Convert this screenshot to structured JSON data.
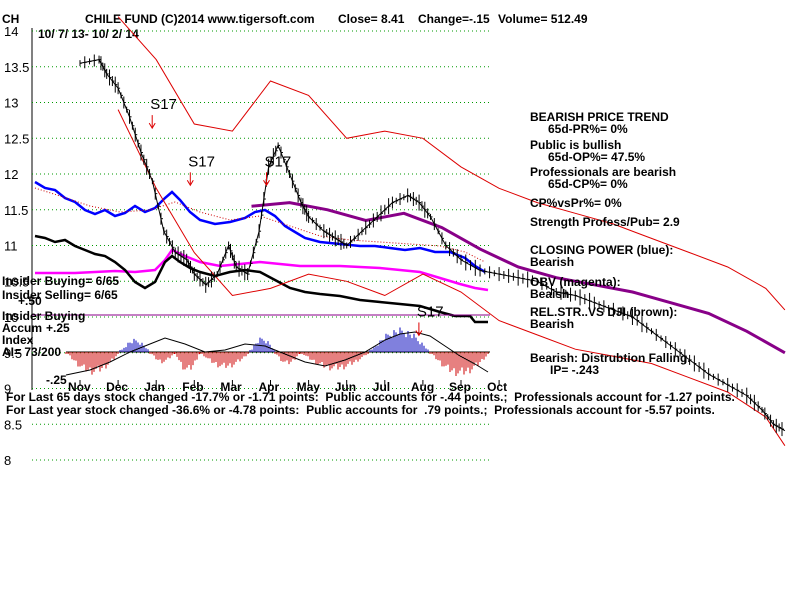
{
  "header": {
    "ticker": "CH",
    "title": "CHILE FUND  (C)2014 www.tigersoft.com",
    "close": "Close=  8.41",
    "change": "Change=-.15",
    "volume": "Volume= 512.49",
    "date_range": "10/ 7/ 13- 10/ 2/ 14"
  },
  "side_panel": {
    "trend_title": "BEARISH PRICE TREND",
    "trend_pr": "65d-PR%= 0%",
    "public": "Public is bullish",
    "public_op": "65d-OP%= 47.5%",
    "pros": "Professionals are bearish",
    "pros_cp": "65d-CP%= 0%",
    "cpvspr": "CP%vsPr%=  0%",
    "strength": "Strength Profess/Pub= 2.9",
    "closing_power": "CLOSING POWER (blue):",
    "closing_power_value": "Bearish",
    "obv": "OBV (magenta):",
    "obv_value": "Beaish",
    "relstr": "REL.STR..VS DJI (brown):",
    "relstr_value": "Bearish",
    "distribution": "Bearish: Distrubtion Falling.",
    "ip": "IP= -.243"
  },
  "left_panel": {
    "insider_buying": "Insider Buying= 6/65",
    "insider_selling": "Insider Selling= 6/65",
    "insider_buying_label": "Insider Buying",
    "accum_label": "Accum",
    "index_label": "Index",
    "ai": "AI= 73/200",
    "plus_50": "+.50",
    "plus_25": "+.25",
    "minus_25": "-.25"
  },
  "footer": {
    "line1": "For Last 65 days stock changed -17.7% or -1.71 points:  Public accounts for -.44 points.;  Professionals account for -1.27 points.",
    "line2": "For Last year stock changed -36.6% or -4.78 points:  Public accounts for  .79 points.;  Professionals account for -5.57 points."
  },
  "colors": {
    "price": "#000000",
    "band": "#dd0000",
    "ma": "#880088",
    "closing_power": "#0000ff",
    "obv": "#ff00ff",
    "relstr": "#000000",
    "grid": "#009900",
    "accum_pos": "#0000bb",
    "accum_neg": "#cc0000"
  },
  "chart_data": {
    "type": "line",
    "title": "CHILE FUND  (C)2014 www.tigersoft.com",
    "x_tick_labels": [
      "Nov",
      "Dec",
      "Jan",
      "Feb",
      "Mar",
      "Apr",
      "May",
      "Jun",
      "Jul",
      "Aug",
      "Sep",
      "Oct"
    ],
    "y_tick_labels": [
      "14",
      "13.5",
      "13",
      "12.5",
      "12",
      "11.5",
      "11",
      "10.5",
      "10",
      "9.5",
      "9",
      "8.5",
      "8"
    ],
    "ylim": [
      8,
      14
    ],
    "grid": true,
    "signals": [
      {
        "label": "S17",
        "x": "Jan",
        "y": 12.6
      },
      {
        "label": "S17",
        "x": "Feb",
        "y": 11.8
      },
      {
        "label": "S17",
        "x": "Apr",
        "y": 11.8
      },
      {
        "label": "S17",
        "x": "Aug",
        "y": 9.7
      }
    ],
    "series": [
      {
        "name": "Price",
        "points": [
          [
            0.0,
            13.55
          ],
          [
            0.5,
            13.6
          ],
          [
            0.7,
            13.4
          ],
          [
            1.0,
            13.2
          ],
          [
            1.3,
            12.8
          ],
          [
            1.6,
            12.3
          ],
          [
            1.9,
            11.9
          ],
          [
            2.2,
            11.2
          ],
          [
            2.5,
            10.9
          ],
          [
            2.8,
            10.8
          ],
          [
            3.0,
            10.6
          ],
          [
            3.3,
            10.45
          ],
          [
            3.6,
            10.6
          ],
          [
            3.9,
            11.0
          ],
          [
            4.1,
            10.7
          ],
          [
            4.4,
            10.6
          ],
          [
            4.7,
            11.2
          ],
          [
            4.95,
            12.1
          ],
          [
            5.2,
            12.4
          ],
          [
            5.5,
            12.0
          ],
          [
            5.8,
            11.6
          ],
          [
            6.0,
            11.4
          ],
          [
            6.4,
            11.2
          ],
          [
            6.7,
            11.1
          ],
          [
            7.0,
            11.0
          ],
          [
            7.4,
            11.2
          ],
          [
            7.8,
            11.4
          ],
          [
            8.2,
            11.6
          ],
          [
            8.6,
            11.7
          ],
          [
            8.9,
            11.6
          ],
          [
            9.2,
            11.4
          ],
          [
            9.6,
            11.0
          ],
          [
            10.0,
            10.8
          ],
          [
            10.5,
            10.65
          ],
          [
            11.0,
            10.6
          ],
          [
            11.5,
            10.55
          ],
          [
            12.0,
            10.5
          ],
          [
            12.5,
            10.35
          ],
          [
            13.0,
            10.3
          ],
          [
            13.5,
            10.2
          ],
          [
            14.0,
            10.1
          ],
          [
            14.5,
            10.0
          ],
          [
            15.0,
            9.8
          ],
          [
            15.5,
            9.6
          ],
          [
            16.0,
            9.4
          ],
          [
            16.5,
            9.2
          ],
          [
            17.0,
            9.05
          ],
          [
            17.5,
            8.9
          ],
          [
            17.9,
            8.7
          ],
          [
            18.2,
            8.5
          ],
          [
            18.5,
            8.41
          ]
        ]
      },
      {
        "name": "Upper band",
        "points": [
          [
            1.0,
            14.2
          ],
          [
            2.0,
            13.6
          ],
          [
            3.0,
            12.7
          ],
          [
            4.0,
            12.6
          ],
          [
            5.0,
            13.3
          ],
          [
            6.0,
            13.1
          ],
          [
            7.0,
            12.5
          ],
          [
            8.0,
            12.6
          ],
          [
            9.0,
            12.5
          ],
          [
            10.0,
            12.1
          ],
          [
            11.0,
            11.8
          ],
          [
            12.0,
            11.6
          ],
          [
            13.0,
            11.45
          ],
          [
            14.0,
            11.3
          ],
          [
            15.0,
            11.1
          ],
          [
            16.0,
            10.9
          ],
          [
            17.0,
            10.7
          ],
          [
            18.0,
            10.4
          ],
          [
            18.5,
            10.1
          ]
        ]
      },
      {
        "name": "Moving average",
        "points": [
          [
            4.5,
            11.55
          ],
          [
            5.5,
            11.6
          ],
          [
            6.5,
            11.5
          ],
          [
            7.5,
            11.35
          ],
          [
            8.5,
            11.45
          ],
          [
            9.5,
            11.25
          ],
          [
            10.5,
            10.95
          ],
          [
            11.5,
            10.7
          ],
          [
            12.5,
            10.55
          ],
          [
            13.5,
            10.45
          ],
          [
            14.5,
            10.35
          ],
          [
            15.5,
            10.2
          ],
          [
            16.5,
            10.05
          ],
          [
            17.5,
            9.8
          ],
          [
            18.5,
            9.5
          ]
        ]
      },
      {
        "name": "Lower band",
        "points": [
          [
            1.0,
            12.9
          ],
          [
            2.0,
            11.8
          ],
          [
            3.0,
            10.9
          ],
          [
            4.0,
            10.3
          ],
          [
            5.0,
            10.4
          ],
          [
            6.0,
            10.6
          ],
          [
            7.0,
            10.5
          ],
          [
            8.0,
            10.3
          ],
          [
            9.0,
            10.6
          ],
          [
            10.0,
            10.35
          ],
          [
            11.0,
            9.95
          ],
          [
            12.0,
            9.75
          ],
          [
            13.0,
            9.55
          ],
          [
            14.0,
            9.45
          ],
          [
            15.0,
            9.35
          ],
          [
            16.0,
            9.15
          ],
          [
            17.0,
            8.95
          ],
          [
            18.0,
            8.6
          ],
          [
            18.5,
            8.2
          ]
        ]
      }
    ]
  }
}
